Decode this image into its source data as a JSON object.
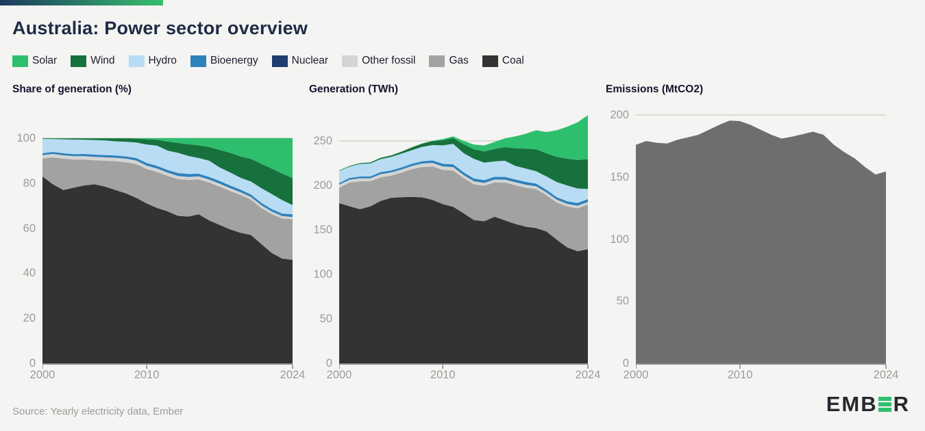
{
  "topbar": {
    "gradient_from": "#1c3a5e",
    "gradient_to": "#37bf6e"
  },
  "header": {
    "title": "Australia: Power sector overview"
  },
  "legend": [
    {
      "label": "Solar",
      "color": "#2ebf6e"
    },
    {
      "label": "Wind",
      "color": "#17713d"
    },
    {
      "label": "Hydro",
      "color": "#b8dcf4"
    },
    {
      "label": "Bioenergy",
      "color": "#2e81bb"
    },
    {
      "label": "Nuclear",
      "color": "#1f3e6e"
    },
    {
      "label": "Other fossil",
      "color": "#d4d4d2"
    },
    {
      "label": "Gas",
      "color": "#a2a2a0"
    },
    {
      "label": "Coal",
      "color": "#333332"
    }
  ],
  "chart_data": [
    {
      "type": "area",
      "stacked": true,
      "title": "Share of generation (%)",
      "unit": "%",
      "x": [
        2000,
        2001,
        2002,
        2003,
        2004,
        2005,
        2006,
        2007,
        2008,
        2009,
        2010,
        2011,
        2012,
        2013,
        2014,
        2015,
        2016,
        2017,
        2018,
        2019,
        2020,
        2021,
        2022,
        2023,
        2024
      ],
      "xticks": [
        2000,
        2010,
        2024
      ],
      "yticks": [
        0,
        20,
        40,
        60,
        80,
        100
      ],
      "ylim": [
        0,
        100
      ],
      "grid_line": 100,
      "series": [
        {
          "name": "Coal",
          "color": "#333332",
          "values": [
            83,
            79.5,
            77,
            78,
            79,
            79.5,
            78.5,
            77,
            75.5,
            73.5,
            71,
            69,
            67.5,
            65.5,
            65.2,
            66.2,
            63.5,
            61.5,
            59.5,
            58,
            57,
            53,
            49,
            46.5,
            46
          ]
        },
        {
          "name": "Gas",
          "color": "#a2a2a0",
          "values": [
            8,
            12,
            13.9,
            12.5,
            11.5,
            10.7,
            11.5,
            12.8,
            13.8,
            15,
            15.3,
            16,
            15.8,
            16.3,
            16.3,
            15.5,
            16.8,
            17,
            17,
            16.8,
            15.7,
            16,
            17.3,
            17.8,
            18
          ]
        },
        {
          "name": "Other fossil",
          "color": "#d4d4d2",
          "values": [
            1.5,
            1.5,
            1.5,
            1.5,
            1.5,
            1.5,
            1.5,
            1.5,
            1.6,
            1.6,
            1.5,
            1.5,
            1.4,
            1.4,
            1.3,
            1.3,
            1.3,
            1.3,
            1.3,
            1.2,
            1.2,
            1.2,
            1.1,
            1.1,
            1
          ]
        },
        {
          "name": "Bioenergy",
          "color": "#2e81bb",
          "values": [
            0.8,
            0.9,
            0.9,
            0.9,
            1,
            1,
            1,
            1,
            1,
            1.1,
            1.2,
            1.2,
            1.2,
            1.3,
            1.3,
            1.2,
            1.2,
            1.2,
            1.2,
            1.1,
            1.1,
            1.1,
            1.1,
            1.1,
            1.2
          ]
        },
        {
          "name": "Nuclear",
          "color": "#1f3e6e",
          "values": [
            0,
            0,
            0,
            0,
            0,
            0,
            0,
            0,
            0,
            0,
            0,
            0,
            0,
            0,
            0,
            0,
            0,
            0,
            0,
            0,
            0,
            0,
            0,
            0,
            0
          ]
        },
        {
          "name": "Hydro",
          "color": "#b8dcf4",
          "values": [
            6.4,
            5.7,
            6.2,
            6.5,
            6.3,
            6.5,
            6.5,
            6.3,
            6.5,
            6.9,
            8.2,
            9,
            8.6,
            9,
            8,
            7,
            7.2,
            6,
            5.8,
            5.3,
            5.8,
            6.5,
            6.7,
            6,
            4.1
          ]
        },
        {
          "name": "Wind",
          "color": "#17713d",
          "values": [
            0.2,
            0.3,
            0.4,
            0.5,
            0.6,
            0.7,
            0.9,
            1.3,
            1.5,
            1.7,
            2.3,
            2.6,
            4,
            4.4,
            5.2,
            5.6,
            6.1,
            7.8,
            8.7,
            9.5,
            10,
            10.8,
            11.3,
            11.8,
            12
          ]
        },
        {
          "name": "Solar",
          "color": "#2ebf6e",
          "values": [
            0.1,
            0.1,
            0.1,
            0.1,
            0.1,
            0.1,
            0.1,
            0.1,
            0.1,
            0.2,
            0.5,
            0.7,
            1.5,
            2.1,
            2.7,
            3.2,
            3.9,
            5.2,
            6.5,
            8.1,
            9.2,
            11.4,
            13.5,
            15.7,
            17.7
          ]
        }
      ]
    },
    {
      "type": "area",
      "stacked": true,
      "title": "Generation (TWh)",
      "unit": "TWh",
      "x": [
        2000,
        2001,
        2002,
        2003,
        2004,
        2005,
        2006,
        2007,
        2008,
        2009,
        2010,
        2011,
        2012,
        2013,
        2014,
        2015,
        2016,
        2017,
        2018,
        2019,
        2020,
        2021,
        2022,
        2023,
        2024
      ],
      "xticks": [
        2000,
        2010,
        2024
      ],
      "yticks": [
        0,
        50,
        100,
        150,
        200,
        250
      ],
      "ylim": [
        0,
        285
      ],
      "grid_line": 250,
      "series": [
        {
          "name": "Coal",
          "color": "#333332",
          "values": [
            180.1,
            176.5,
            173.3,
            176.3,
            182.5,
            186,
            186.8,
            187.1,
            186.5,
            183.8,
            178.9,
            176,
            168.8,
            161.1,
            159.7,
            164.8,
            160.7,
            156.8,
            153.5,
            152,
            148.2,
            138.9,
            130.3,
            126,
            128.3
          ]
        },
        {
          "name": "Gas",
          "color": "#a2a2a0",
          "values": [
            17.4,
            26.6,
            31.3,
            28.3,
            26.6,
            25,
            27.4,
            31.1,
            34.1,
            37.5,
            38.6,
            40.8,
            39.5,
            40.1,
            39.9,
            38.6,
            42.5,
            43.4,
            43.9,
            44,
            40.8,
            41.9,
            46,
            48.2,
            50.2
          ]
        },
        {
          "name": "Other fossil",
          "color": "#d4d4d2",
          "values": [
            3.3,
            3.3,
            3.4,
            3.4,
            3.5,
            3.5,
            3.6,
            3.6,
            4,
            4,
            3.8,
            3.8,
            3.5,
            3.4,
            3.2,
            3.2,
            3.3,
            3.3,
            3.4,
            3.1,
            3.1,
            3.1,
            2.9,
            3,
            2.8
          ]
        },
        {
          "name": "Bioenergy",
          "color": "#2e81bb",
          "values": [
            1.7,
            2,
            2,
            2,
            2.3,
            2.3,
            2.4,
            2.4,
            2.5,
            2.8,
            3,
            3.1,
            3,
            3.2,
            3.2,
            3,
            3,
            3.1,
            3.1,
            2.9,
            2.9,
            2.9,
            2.9,
            3,
            3.3
          ]
        },
        {
          "name": "Nuclear",
          "color": "#1f3e6e",
          "values": [
            0,
            0,
            0,
            0,
            0,
            0,
            0,
            0,
            0,
            0,
            0,
            0,
            0,
            0,
            0,
            0,
            0,
            0,
            0,
            0,
            0,
            0,
            0,
            0,
            0
          ]
        },
        {
          "name": "Hydro",
          "color": "#b8dcf4",
          "values": [
            13.9,
            12.7,
            14,
            14.7,
            14.6,
            15.2,
            15.5,
            15.3,
            16.1,
            17.3,
            20.7,
            23,
            21.5,
            22.1,
            19.6,
            17.4,
            18.2,
            15.3,
            15,
            13.9,
            15.1,
            17,
            17.8,
            16.3,
            11.4
          ]
        },
        {
          "name": "Wind",
          "color": "#17713d",
          "values": [
            0.4,
            0.7,
            0.9,
            1.1,
            1.4,
            1.6,
            2.1,
            3.2,
            3.7,
            4.3,
            5.8,
            6.6,
            10,
            10.8,
            12.7,
            13.9,
            15.4,
            19.9,
            22.4,
            24.9,
            26,
            28.3,
            30.1,
            32,
            33.5
          ]
        },
        {
          "name": "Solar",
          "color": "#2ebf6e",
          "values": [
            0.2,
            0.2,
            0.2,
            0.2,
            0.2,
            0.2,
            0.2,
            0.2,
            0.2,
            0.5,
            1.3,
            1.8,
            3.8,
            5.2,
            6.6,
            8,
            9.9,
            13.3,
            16.8,
            21.2,
            23.9,
            29.9,
            35.9,
            42.5,
            49.4
          ]
        }
      ]
    },
    {
      "type": "area",
      "stacked": false,
      "title": "Emissions (MtCO2)",
      "unit": "MtCO2",
      "x": [
        2000,
        2001,
        2002,
        2003,
        2004,
        2005,
        2006,
        2007,
        2008,
        2009,
        2010,
        2011,
        2012,
        2013,
        2014,
        2015,
        2016,
        2017,
        2018,
        2019,
        2020,
        2021,
        2022,
        2023,
        2024
      ],
      "xticks": [
        2000,
        2010,
        2024
      ],
      "yticks": [
        0,
        50,
        100,
        150,
        200
      ],
      "ylim": [
        0,
        205
      ],
      "grid_line": 200,
      "series": [
        {
          "name": "Emissions",
          "color": "#6e6e6e",
          "values": [
            176,
            179,
            177.5,
            177,
            180,
            182,
            184,
            188,
            192,
            195.5,
            195,
            192,
            188,
            184,
            181,
            182.5,
            184.5,
            186.5,
            184,
            176,
            170,
            165,
            158,
            152,
            154.5
          ]
        }
      ]
    }
  ],
  "source": {
    "text": "Source: Yearly electricity data, Ember"
  },
  "logo": {
    "left": "EMB",
    "right": "R",
    "bar_color": "#2ebf6e",
    "text_color": "#26292e"
  }
}
